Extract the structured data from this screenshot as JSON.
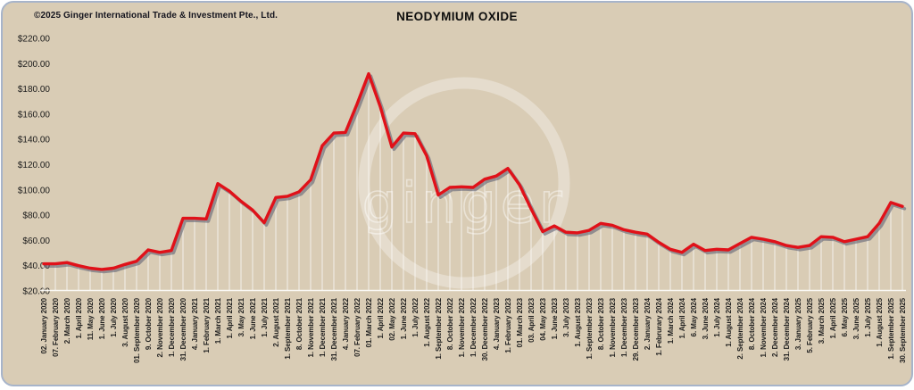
{
  "header": {
    "copyright": "©2025 Ginger International Trade & Investment Pte., Ltd.",
    "title": "NEODYMIUM OXIDE"
  },
  "watermark": {
    "text": "ginger"
  },
  "colors": {
    "background": "#d9ccb5",
    "card_border": "#a7b4ca",
    "line": "#e01119",
    "line_shadow": "#565a70",
    "stem": "rgba(255,255,255,0.55)",
    "baseline": "rgba(255,255,255,0.85)",
    "watermark": "rgba(255,255,255,0.32)",
    "axis_text": "#1a1a1a"
  },
  "chart_data": {
    "type": "line",
    "title": "NEODYMIUM OXIDE",
    "xlabel": "",
    "ylabel": "",
    "ylim": [
      20,
      220
    ],
    "y_tick_step": 20,
    "y_tick_labels": [
      "$220.00",
      "$200.00",
      "$180.00",
      "$160.00",
      "$140.00",
      "$120.00",
      "$100.00",
      "$80.00",
      "$60.00",
      "$40.00",
      "$20.00"
    ],
    "grid": "vertical-stems",
    "legend": "none",
    "categories": [
      "02. January 2020",
      "07. February 2020",
      "2. March 2020",
      "1. April 2020",
      "11. May 2020",
      "1. June 2020",
      "1. July 2020",
      "3. August 2020",
      "01. September 2020",
      "9. October 2020",
      "2. November 2020",
      "1. December 2020",
      "31. December 2020",
      "4. January 2021",
      "1. February 2021",
      "1. March 2021",
      "1. April 2021",
      "3. May 2021",
      "1. June 2021",
      "1. July 2021",
      "2. August 2021",
      "1. September 2021",
      "8. October 2021",
      "1. November 2021",
      "1. December 2021",
      "31. December 2021",
      "4. January 2022",
      "07. February 2022",
      "01. March 2022",
      "1. April 2022",
      "02. May 2022",
      "1. June 2022",
      "1. July 2022",
      "1. August 2022",
      "1. September 2022",
      "8. October 2022",
      "1. November 2022",
      "1. December 2022",
      "30. December 2022",
      "4. January 2023",
      "1. February 2023",
      "01. March 2023",
      "03. April 2023",
      "04. May 2023",
      "1. June 2023",
      "3. July 2023",
      "1. August 2023",
      "1. September 2023",
      "8. October 2023",
      "1. November 2023",
      "1. December 2023",
      "29. December 2023",
      "2. January 2024",
      "1. Februrary 2024",
      "1. March 2024",
      "1. April 2024",
      "6. May 2024",
      "3. June 2024",
      "1. July 2024",
      "1. August 2024",
      "2. September 2024",
      "8. October 2024",
      "1. November 2024",
      "2. December 2024",
      "31. December 2024",
      "3. January 2025",
      "5. February 2025",
      "3. March 2025",
      "1. April 2025",
      "6. May 2025",
      "3. June 2025",
      "1. July 2025",
      "1. August 2025",
      "1. September 2025",
      "30. September 2025"
    ],
    "values": [
      41.5,
      41.5,
      42.5,
      40,
      38,
      37,
      38,
      41,
      43.5,
      52.5,
      50.5,
      52,
      77.5,
      77.5,
      77,
      105,
      99,
      91,
      84,
      74,
      94,
      95,
      98.5,
      108,
      135,
      145,
      145.5,
      168,
      192,
      166,
      134,
      145,
      144.5,
      127,
      96,
      102,
      102.5,
      102,
      108.5,
      111,
      117,
      104,
      85,
      67,
      71.5,
      66.5,
      66,
      68,
      73.5,
      72,
      68.5,
      66.5,
      65,
      58.5,
      53,
      50.5,
      57,
      52,
      53,
      52.5,
      57.5,
      62.5,
      61,
      59,
      56,
      54.5,
      56,
      63,
      62.5,
      59,
      61,
      63,
      73.5,
      90,
      87
    ]
  }
}
